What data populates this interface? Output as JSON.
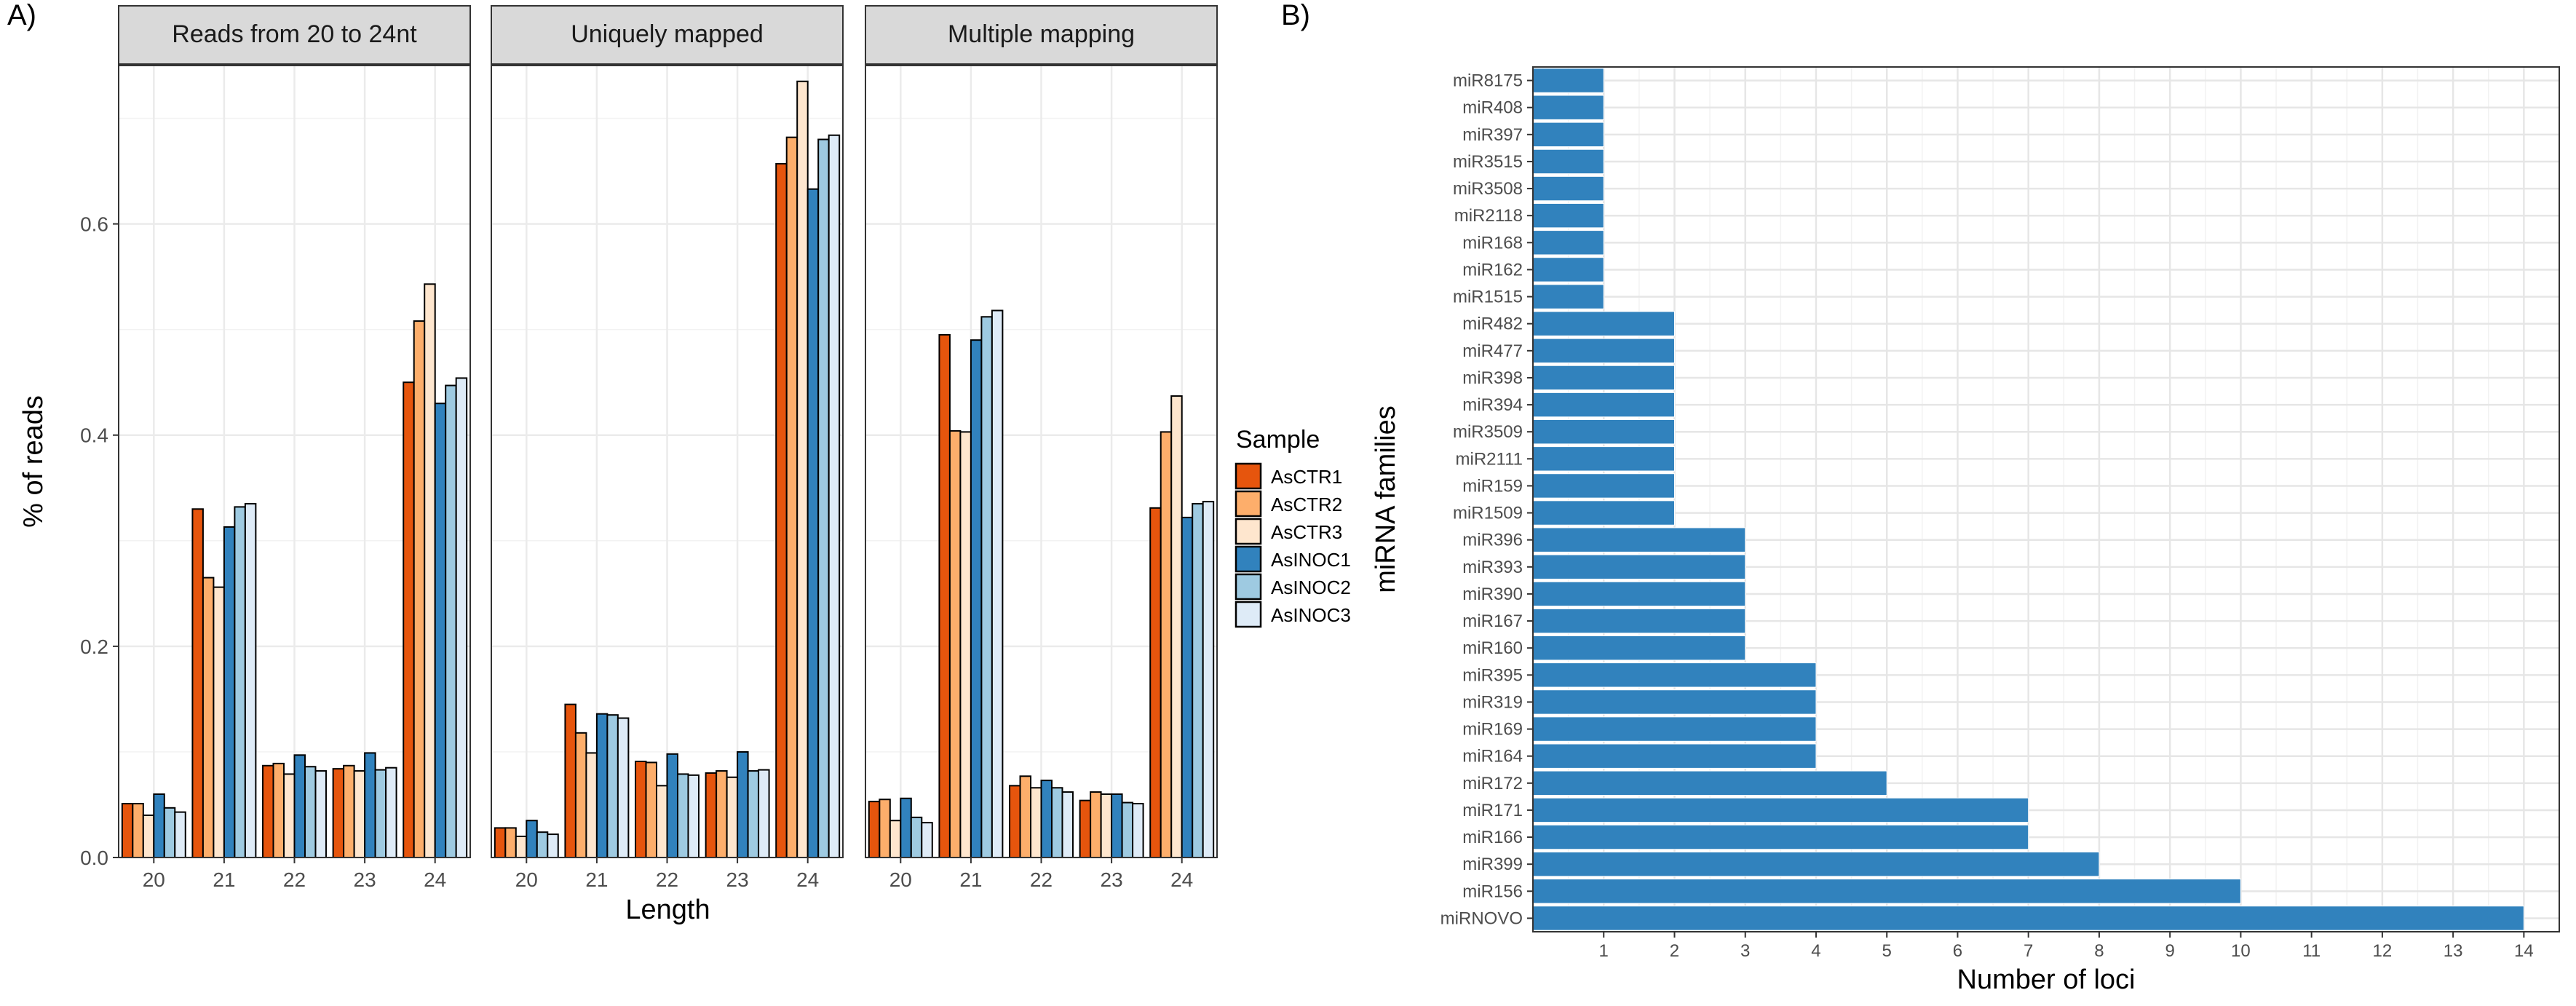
{
  "panel_labels": [
    "A)",
    "B)"
  ],
  "chart_data": [
    {
      "type": "bar",
      "facets": [
        "Reads from 20 to 24nt",
        "Uniquely mapped",
        "Multiple mapping"
      ],
      "categories": [
        "20",
        "21",
        "22",
        "23",
        "24"
      ],
      "xlabel": "Length",
      "ylabel": "% of reads",
      "ylim": [
        0,
        0.75
      ],
      "yticks": [
        "0.0",
        "0.2",
        "0.4",
        "0.6"
      ],
      "yticks_values": [
        0,
        0.2,
        0.4,
        0.6
      ],
      "grid": true,
      "legend": {
        "title": "Sample",
        "position": "right",
        "entries": [
          "AsCTR1",
          "AsCTR2",
          "AsCTR3",
          "AsINOC1",
          "AsINOC2",
          "AsINOC3"
        ],
        "colors": [
          "#e6550d",
          "#fdae6b",
          "#fee6ce",
          "#3182bd",
          "#9ecae1",
          "#deebf7"
        ]
      },
      "series_by_facet": [
        [
          {
            "name": "AsCTR1",
            "values": [
              0.051,
              0.33,
              0.087,
              0.084,
              0.45
            ]
          },
          {
            "name": "AsCTR2",
            "values": [
              0.051,
              0.265,
              0.089,
              0.087,
              0.508
            ]
          },
          {
            "name": "AsCTR3",
            "values": [
              0.04,
              0.256,
              0.079,
              0.082,
              0.543
            ]
          },
          {
            "name": "AsINOC1",
            "values": [
              0.06,
              0.313,
              0.097,
              0.099,
              0.43
            ]
          },
          {
            "name": "AsINOC2",
            "values": [
              0.047,
              0.332,
              0.086,
              0.083,
              0.447
            ]
          },
          {
            "name": "AsINOC3",
            "values": [
              0.043,
              0.335,
              0.082,
              0.085,
              0.454
            ]
          }
        ],
        [
          {
            "name": "AsCTR1",
            "values": [
              0.028,
              0.145,
              0.091,
              0.08,
              0.657
            ]
          },
          {
            "name": "AsCTR2",
            "values": [
              0.028,
              0.118,
              0.09,
              0.082,
              0.682
            ]
          },
          {
            "name": "AsCTR3",
            "values": [
              0.02,
              0.099,
              0.068,
              0.076,
              0.735
            ]
          },
          {
            "name": "AsINOC1",
            "values": [
              0.035,
              0.136,
              0.098,
              0.1,
              0.633
            ]
          },
          {
            "name": "AsINOC2",
            "values": [
              0.024,
              0.135,
              0.079,
              0.082,
              0.68
            ]
          },
          {
            "name": "AsINOC3",
            "values": [
              0.022,
              0.132,
              0.078,
              0.083,
              0.684
            ]
          }
        ],
        [
          {
            "name": "AsCTR1",
            "values": [
              0.053,
              0.495,
              0.068,
              0.054,
              0.331
            ]
          },
          {
            "name": "AsCTR2",
            "values": [
              0.055,
              0.404,
              0.077,
              0.062,
              0.403
            ]
          },
          {
            "name": "AsCTR3",
            "values": [
              0.035,
              0.403,
              0.066,
              0.06,
              0.437
            ]
          },
          {
            "name": "AsINOC1",
            "values": [
              0.056,
              0.49,
              0.073,
              0.06,
              0.322
            ]
          },
          {
            "name": "AsINOC2",
            "values": [
              0.038,
              0.512,
              0.066,
              0.052,
              0.335
            ]
          },
          {
            "name": "AsINOC3",
            "values": [
              0.033,
              0.518,
              0.062,
              0.051,
              0.337
            ]
          }
        ]
      ]
    },
    {
      "type": "bar",
      "orientation": "horizontal",
      "categories": [
        "miR8175",
        "miR408",
        "miR397",
        "miR3515",
        "miR3508",
        "miR2118",
        "miR168",
        "miR162",
        "miR1515",
        "miR482",
        "miR477",
        "miR398",
        "miR394",
        "miR3509",
        "miR2111",
        "miR159",
        "miR1509",
        "miR396",
        "miR393",
        "miR390",
        "miR167",
        "miR160",
        "miR395",
        "miR319",
        "miR169",
        "miR164",
        "miR172",
        "miR171",
        "miR166",
        "miR399",
        "miR156",
        "miRNOVO"
      ],
      "values": [
        1,
        1,
        1,
        1,
        1,
        1,
        1,
        1,
        1,
        2,
        2,
        2,
        2,
        2,
        2,
        2,
        2,
        3,
        3,
        3,
        3,
        3,
        4,
        4,
        4,
        4,
        5,
        7,
        7,
        8,
        10,
        14
      ],
      "xlabel": "Number of loci",
      "ylabel": "miRNA families",
      "xticks": [
        "1",
        "2",
        "3",
        "4",
        "5",
        "6",
        "7",
        "8",
        "9",
        "10",
        "11",
        "12",
        "13",
        "14"
      ],
      "xlim": [
        0,
        14.5
      ],
      "bar_color": "#3182bd",
      "grid": true
    }
  ]
}
